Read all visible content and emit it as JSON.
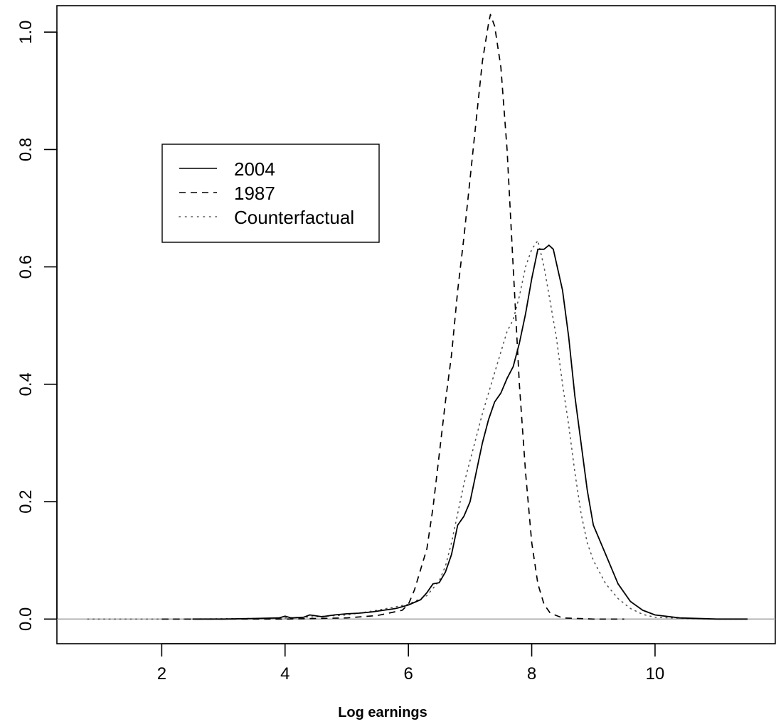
{
  "chart_data": {
    "type": "line",
    "title": "",
    "xlabel": "Log earnings",
    "ylabel": "",
    "xlim": [
      0.3,
      11.95
    ],
    "ylim": [
      -0.042,
      1.045
    ],
    "x_ticks": [
      2,
      4,
      6,
      8,
      10
    ],
    "y_ticks": [
      0.0,
      0.2,
      0.4,
      0.6,
      0.8,
      1.0
    ],
    "x_tick_labels": [
      "2",
      "4",
      "6",
      "8",
      "10"
    ],
    "y_tick_labels": [
      "0.0",
      "0.2",
      "0.4",
      "0.6",
      "0.8",
      "1.0"
    ],
    "baseline": 0,
    "legend": {
      "position": "upper-left",
      "entries": [
        "2004",
        "1987",
        "Counterfactual"
      ]
    },
    "series": [
      {
        "name": "2004",
        "style": "solid",
        "points": [
          [
            2.5,
            0.0
          ],
          [
            3.0,
            0.0
          ],
          [
            3.5,
            0.001
          ],
          [
            3.9,
            0.002
          ],
          [
            4.0,
            0.005
          ],
          [
            4.1,
            0.002
          ],
          [
            4.3,
            0.003
          ],
          [
            4.4,
            0.007
          ],
          [
            4.6,
            0.004
          ],
          [
            4.8,
            0.007
          ],
          [
            5.0,
            0.009
          ],
          [
            5.2,
            0.01
          ],
          [
            5.4,
            0.012
          ],
          [
            5.6,
            0.015
          ],
          [
            5.8,
            0.018
          ],
          [
            6.0,
            0.024
          ],
          [
            6.2,
            0.033
          ],
          [
            6.3,
            0.045
          ],
          [
            6.4,
            0.06
          ],
          [
            6.5,
            0.062
          ],
          [
            6.6,
            0.08
          ],
          [
            6.7,
            0.11
          ],
          [
            6.8,
            0.16
          ],
          [
            6.9,
            0.175
          ],
          [
            7.0,
            0.2
          ],
          [
            7.1,
            0.25
          ],
          [
            7.2,
            0.3
          ],
          [
            7.3,
            0.34
          ],
          [
            7.4,
            0.37
          ],
          [
            7.5,
            0.385
          ],
          [
            7.6,
            0.41
          ],
          [
            7.7,
            0.43
          ],
          [
            7.8,
            0.47
          ],
          [
            7.9,
            0.52
          ],
          [
            8.0,
            0.58
          ],
          [
            8.1,
            0.63
          ],
          [
            8.2,
            0.63
          ],
          [
            8.28,
            0.637
          ],
          [
            8.35,
            0.63
          ],
          [
            8.5,
            0.56
          ],
          [
            8.6,
            0.48
          ],
          [
            8.7,
            0.38
          ],
          [
            8.8,
            0.3
          ],
          [
            8.9,
            0.22
          ],
          [
            9.0,
            0.16
          ],
          [
            9.2,
            0.11
          ],
          [
            9.4,
            0.06
          ],
          [
            9.6,
            0.03
          ],
          [
            9.8,
            0.015
          ],
          [
            10.0,
            0.007
          ],
          [
            10.4,
            0.002
          ],
          [
            11.0,
            0.0
          ],
          [
            11.5,
            0.0
          ]
        ]
      },
      {
        "name": "1987",
        "style": "dashed",
        "points": [
          [
            2.0,
            0.0
          ],
          [
            3.0,
            0.0
          ],
          [
            4.0,
            0.0
          ],
          [
            5.0,
            0.002
          ],
          [
            5.5,
            0.006
          ],
          [
            5.9,
            0.015
          ],
          [
            6.0,
            0.025
          ],
          [
            6.1,
            0.05
          ],
          [
            6.2,
            0.085
          ],
          [
            6.3,
            0.12
          ],
          [
            6.4,
            0.19
          ],
          [
            6.5,
            0.28
          ],
          [
            6.6,
            0.37
          ],
          [
            6.7,
            0.45
          ],
          [
            6.8,
            0.56
          ],
          [
            6.9,
            0.65
          ],
          [
            7.0,
            0.75
          ],
          [
            7.1,
            0.85
          ],
          [
            7.2,
            0.95
          ],
          [
            7.3,
            1.015
          ],
          [
            7.33,
            1.03
          ],
          [
            7.4,
            1.01
          ],
          [
            7.5,
            0.94
          ],
          [
            7.6,
            0.8
          ],
          [
            7.7,
            0.6
          ],
          [
            7.8,
            0.4
          ],
          [
            7.9,
            0.25
          ],
          [
            8.0,
            0.13
          ],
          [
            8.1,
            0.06
          ],
          [
            8.2,
            0.025
          ],
          [
            8.3,
            0.01
          ],
          [
            8.5,
            0.002
          ],
          [
            9.0,
            0.0
          ],
          [
            9.5,
            0.0
          ]
        ]
      },
      {
        "name": "Counterfactual",
        "style": "dotted",
        "points": [
          [
            0.8,
            0.0
          ],
          [
            1.5,
            0.0
          ],
          [
            2.5,
            0.0
          ],
          [
            3.5,
            0.001
          ],
          [
            4.0,
            0.002
          ],
          [
            4.5,
            0.004
          ],
          [
            5.0,
            0.007
          ],
          [
            5.5,
            0.015
          ],
          [
            6.0,
            0.025
          ],
          [
            6.3,
            0.04
          ],
          [
            6.5,
            0.065
          ],
          [
            6.6,
            0.09
          ],
          [
            6.7,
            0.13
          ],
          [
            6.8,
            0.18
          ],
          [
            6.9,
            0.23
          ],
          [
            7.0,
            0.27
          ],
          [
            7.2,
            0.35
          ],
          [
            7.4,
            0.42
          ],
          [
            7.6,
            0.49
          ],
          [
            7.7,
            0.51
          ],
          [
            7.8,
            0.55
          ],
          [
            7.9,
            0.6
          ],
          [
            8.0,
            0.63
          ],
          [
            8.1,
            0.645
          ],
          [
            8.2,
            0.6
          ],
          [
            8.3,
            0.54
          ],
          [
            8.4,
            0.48
          ],
          [
            8.5,
            0.4
          ],
          [
            8.6,
            0.33
          ],
          [
            8.7,
            0.25
          ],
          [
            8.8,
            0.18
          ],
          [
            8.9,
            0.13
          ],
          [
            9.0,
            0.1
          ],
          [
            9.2,
            0.06
          ],
          [
            9.4,
            0.035
          ],
          [
            9.6,
            0.018
          ],
          [
            9.8,
            0.008
          ],
          [
            10.0,
            0.003
          ],
          [
            10.5,
            0.001
          ],
          [
            11.0,
            0.0
          ],
          [
            11.5,
            0.0
          ]
        ]
      }
    ]
  }
}
